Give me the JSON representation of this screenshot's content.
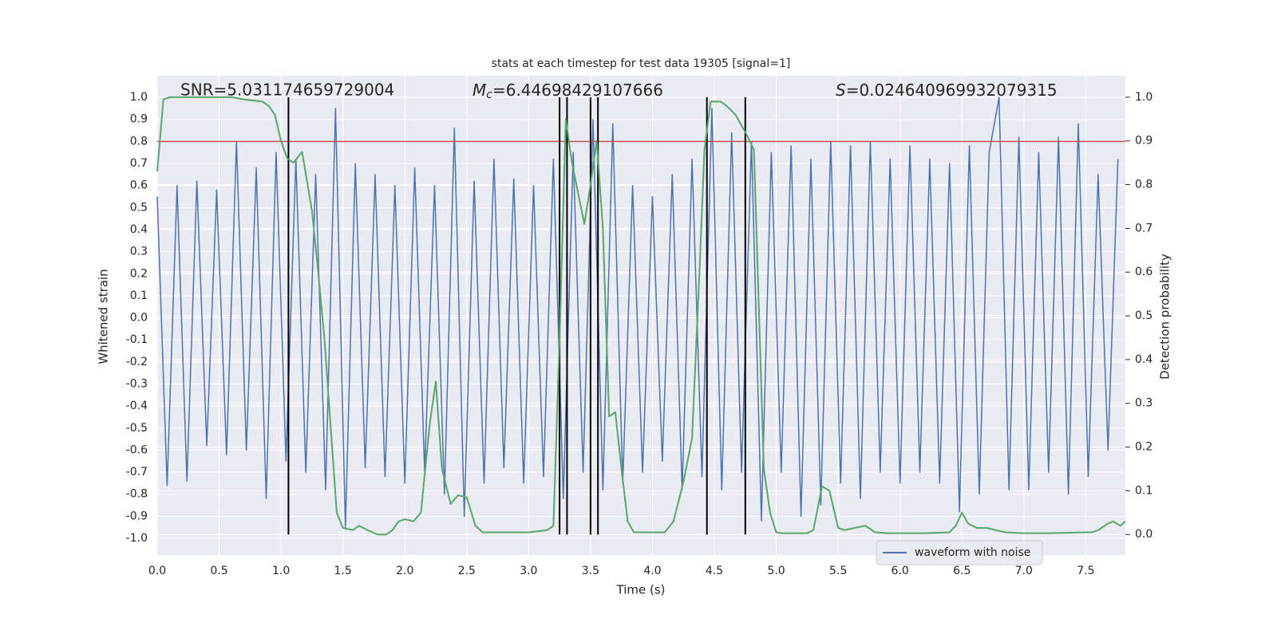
{
  "chart_data": {
    "type": "line",
    "title": "stats at each timestep for test data 19305 [signal=1]",
    "xlabel": "Time (s)",
    "ylabel": "Whitened strain",
    "y2label": "Detection probability",
    "annotations": [
      {
        "text": "SNR=5.031174659729004"
      },
      {
        "symbol": "M",
        "subscript": "c",
        "text": "=6.44698429107666"
      },
      {
        "symbol": "S",
        "text": "=0.024640969932079315"
      }
    ],
    "xlim": [
      0,
      7.82
    ],
    "ylim": [
      -1.076,
      1.098
    ],
    "y2lim": [
      -0.047,
      1.049
    ],
    "xticks": [
      {
        "value": 0,
        "label": "0.0"
      },
      0.5,
      {
        "value": 1,
        "label": "1.0"
      },
      1.5,
      {
        "value": 2,
        "label": "2.0"
      },
      2.5,
      {
        "value": 3,
        "label": "3.0"
      },
      3.5,
      {
        "value": 4,
        "label": "4.0"
      },
      4.5,
      {
        "value": 5,
        "label": "5.0"
      },
      5.5,
      {
        "value": 6,
        "label": "6.0"
      },
      6.5,
      {
        "value": 7,
        "label": "7.0"
      },
      7.5
    ],
    "yticks": [
      {
        "value": -1,
        "label": "-1.0"
      },
      -0.9,
      -0.8,
      -0.7,
      -0.6,
      -0.5,
      -0.4,
      -0.3,
      -0.2,
      -0.1,
      {
        "value": 0,
        "label": "0.0"
      },
      0.1,
      0.2,
      0.3,
      0.4,
      0.5,
      0.6,
      0.7,
      0.8,
      0.9,
      {
        "value": 1,
        "label": "1.0"
      }
    ],
    "y2ticks": [
      {
        "value": 0,
        "label": "0.0"
      },
      0.1,
      0.2,
      0.3,
      0.4,
      0.5,
      0.6,
      0.7,
      0.8,
      0.9,
      {
        "value": 1,
        "label": "1.0"
      }
    ],
    "grid": true,
    "legend": "lower right",
    "threshold": 0.8,
    "threshold_color": "#c44e52",
    "vlines": [
      1.06,
      3.25,
      3.31,
      3.5,
      3.56,
      4.44,
      4.75
    ],
    "vline_color": "#000000",
    "series": [
      {
        "name": "waveform with noise",
        "color": "#4c72b0",
        "x": [
          0,
          0.08,
          0.16,
          0.24,
          0.32,
          0.4,
          0.48,
          0.56,
          0.64,
          0.72,
          0.8,
          0.88,
          0.96,
          1.04,
          1.12,
          1.2,
          1.28,
          1.36,
          1.44,
          1.52,
          1.6,
          1.68,
          1.76,
          1.84,
          1.92,
          2.0,
          2.08,
          2.16,
          2.24,
          2.32,
          2.4,
          2.48,
          2.56,
          2.64,
          2.72,
          2.8,
          2.88,
          2.96,
          3.04,
          3.12,
          3.2,
          3.28,
          3.36,
          3.44,
          3.52,
          3.6,
          3.68,
          3.76,
          3.84,
          3.92,
          4.0,
          4.08,
          4.16,
          4.24,
          4.32,
          4.4,
          4.48,
          4.56,
          4.64,
          4.72,
          4.8,
          4.88,
          4.96,
          5.04,
          5.12,
          5.2,
          5.28,
          5.36,
          5.44,
          5.52,
          5.6,
          5.68,
          5.76,
          5.84,
          5.92,
          6.0,
          6.08,
          6.16,
          6.24,
          6.32,
          6.4,
          6.48,
          6.56,
          6.64,
          6.72,
          6.8,
          6.88,
          6.96,
          7.04,
          7.12,
          7.2,
          7.28,
          7.36,
          7.44,
          7.52,
          7.6,
          7.68,
          7.76
        ],
        "values": [
          0.55,
          -0.76,
          0.6,
          -0.74,
          0.62,
          -0.58,
          0.58,
          -0.62,
          0.8,
          -0.6,
          0.68,
          -0.82,
          0.75,
          -0.65,
          0.72,
          -0.7,
          0.65,
          -0.78,
          0.95,
          -0.95,
          0.7,
          -0.68,
          0.65,
          -0.72,
          0.6,
          -0.75,
          0.68,
          -0.7,
          0.6,
          -0.8,
          0.86,
          -0.9,
          0.62,
          -0.75,
          0.72,
          -0.68,
          0.63,
          -0.75,
          0.6,
          -0.72,
          0.72,
          -0.82,
          0.75,
          -0.7,
          0.9,
          -0.78,
          0.88,
          -0.75,
          0.6,
          -0.7,
          0.55,
          -0.65,
          0.65,
          -0.78,
          0.72,
          -0.72,
          0.95,
          -0.78,
          0.84,
          -0.7,
          0.8,
          -0.92,
          0.75,
          -0.7,
          0.78,
          -0.9,
          0.72,
          -0.85,
          0.8,
          -0.75,
          0.78,
          -0.82,
          0.8,
          -0.7,
          0.72,
          -0.75,
          0.78,
          -0.7,
          0.72,
          -0.75,
          0.7,
          -0.88,
          0.78,
          -0.8,
          0.75,
          1.0,
          -0.78,
          0.82,
          -0.78,
          0.75,
          -0.7,
          0.82,
          -0.8,
          0.88,
          -0.72,
          0.65,
          -0.6,
          0.72
        ]
      },
      {
        "color": "#55a868",
        "axis": "y2",
        "x": [
          0,
          0.05,
          0.1,
          0.6,
          0.7,
          0.85,
          0.9,
          0.95,
          1.0,
          1.05,
          1.1,
          1.17,
          1.25,
          1.3,
          1.35,
          1.4,
          1.45,
          1.5,
          1.58,
          1.63,
          1.7,
          1.78,
          1.85,
          1.9,
          1.95,
          2.0,
          2.07,
          2.13,
          2.2,
          2.25,
          2.3,
          2.37,
          2.43,
          2.5,
          2.57,
          2.63,
          2.8,
          3.0,
          3.15,
          3.2,
          3.25,
          3.3,
          3.35,
          3.45,
          3.5,
          3.55,
          3.6,
          3.65,
          3.7,
          3.75,
          3.8,
          3.85,
          3.95,
          4.1,
          4.17,
          4.25,
          4.32,
          4.38,
          4.42,
          4.47,
          4.55,
          4.6,
          4.67,
          4.75,
          4.82,
          4.9,
          4.95,
          5.0,
          5.05,
          5.15,
          5.25,
          5.3,
          5.37,
          5.43,
          5.5,
          5.55,
          5.63,
          5.72,
          5.8,
          5.9,
          6.0,
          6.2,
          6.4,
          6.45,
          6.5,
          6.55,
          6.62,
          6.7,
          6.85,
          7.0,
          7.2,
          7.5,
          7.55,
          7.6,
          7.68,
          7.72,
          7.78,
          7.82
        ],
        "values": [
          0.83,
          0.995,
          1.0,
          1.0,
          0.995,
          0.99,
          0.98,
          0.96,
          0.9,
          0.86,
          0.85,
          0.875,
          0.74,
          0.6,
          0.45,
          0.25,
          0.05,
          0.015,
          0.01,
          0.02,
          0.01,
          0.0,
          0.0,
          0.01,
          0.03,
          0.035,
          0.03,
          0.05,
          0.25,
          0.35,
          0.15,
          0.07,
          0.09,
          0.085,
          0.02,
          0.005,
          0.005,
          0.005,
          0.01,
          0.02,
          0.45,
          0.95,
          0.85,
          0.71,
          0.8,
          0.9,
          0.7,
          0.27,
          0.28,
          0.15,
          0.03,
          0.005,
          0.005,
          0.005,
          0.03,
          0.12,
          0.22,
          0.6,
          0.88,
          0.99,
          0.99,
          0.98,
          0.96,
          0.92,
          0.88,
          0.15,
          0.05,
          0.005,
          0.003,
          0.003,
          0.003,
          0.01,
          0.11,
          0.1,
          0.015,
          0.01,
          0.015,
          0.02,
          0.005,
          0.003,
          0.003,
          0.003,
          0.005,
          0.02,
          0.05,
          0.025,
          0.015,
          0.015,
          0.005,
          0.003,
          0.003,
          0.005,
          0.005,
          0.01,
          0.025,
          0.03,
          0.02,
          0.03
        ]
      }
    ]
  }
}
